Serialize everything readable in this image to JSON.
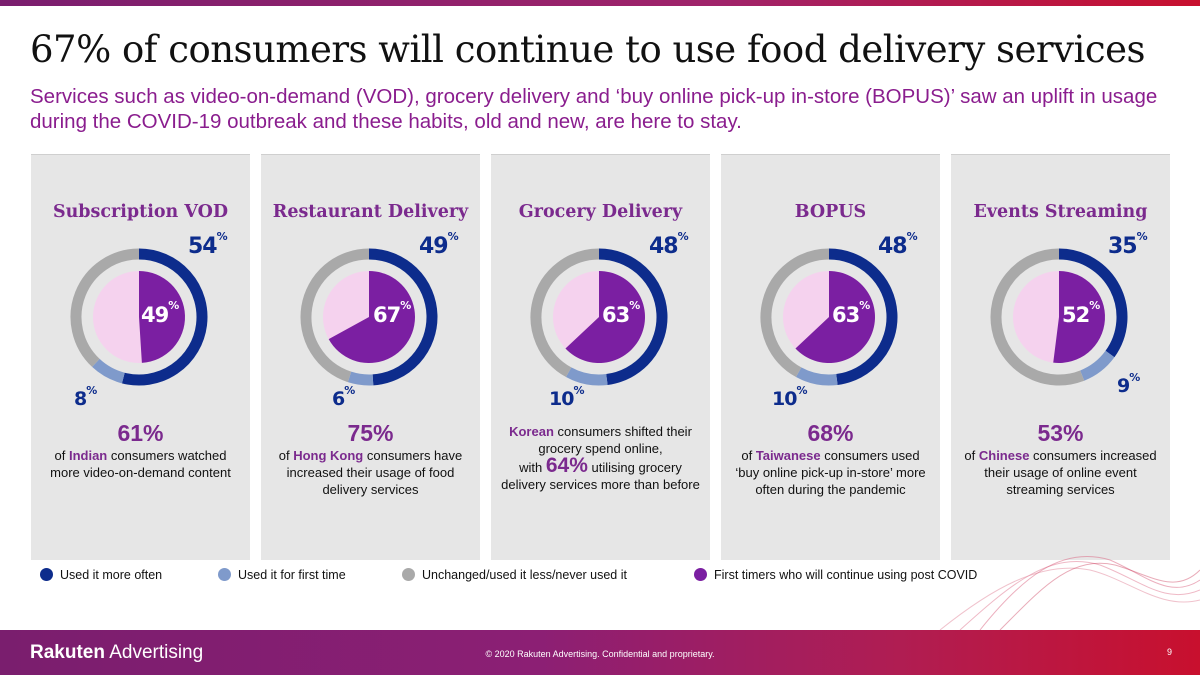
{
  "title": "67% of consumers will continue to use food delivery services",
  "subtitle": "Services such as video-on-demand (VOD), grocery delivery and ‘buy online pick-up in-store (BOPUS)’ saw an uplift in usage during the COVID-19 outbreak and these habits, old and new, are here to stay.",
  "colors": {
    "used_more": "#0d2c8c",
    "first_time": "#7f9acb",
    "unchanged": "#a9a9a9",
    "continue": "#7b1fa2",
    "inner_rest": "#f5d2ee",
    "panel_bg": "#e6e6e6"
  },
  "chart_data": {
    "type": "pie",
    "categories": [
      "Subscription VOD",
      "Restaurant Delivery",
      "Grocery Delivery",
      "BOPUS",
      "Events Streaming"
    ],
    "series": [
      {
        "name": "Used it more often",
        "values": [
          54,
          49,
          48,
          48,
          35
        ]
      },
      {
        "name": "Used it for first time",
        "values": [
          8,
          6,
          10,
          10,
          9
        ]
      },
      {
        "name": "Unchanged/used it less/never used it",
        "values": [
          38,
          45,
          42,
          42,
          56
        ]
      },
      {
        "name": "First timers who will continue using post COVID",
        "values": [
          49,
          67,
          63,
          63,
          52
        ]
      }
    ],
    "legend": "bottom"
  },
  "pct_sign": "%",
  "panels": [
    {
      "title": "Subscription VOD",
      "more": "54",
      "first": "8",
      "cont": "49",
      "stat": "61%",
      "pre": "of ",
      "hl": "Indian",
      "post": " consumers watched more video-on-demand content"
    },
    {
      "title": "Restaurant Delivery",
      "more": "49",
      "first": "6",
      "cont": "67",
      "stat": "75%",
      "pre": "of ",
      "hl": "Hong Kong",
      "post": " consumers have increased their usage of food delivery services"
    },
    {
      "title": "Grocery Delivery",
      "more": "48",
      "first": "10",
      "cont": "63",
      "hl": "Korean",
      "line_a": " consumers shifted their grocery spend online,",
      "with": "with ",
      "big": "64%",
      "line_b": " utilising grocery delivery services more than before"
    },
    {
      "title": "BOPUS",
      "more": "48",
      "first": "10",
      "cont": "63",
      "stat": "68%",
      "pre": "of ",
      "hl": "Taiwanese",
      "post": " consumers used ‘buy online pick-up in-store’ more often during the pandemic"
    },
    {
      "title": "Events Streaming",
      "more": "35",
      "first": "9",
      "cont": "52",
      "stat": "53%",
      "pre": "of ",
      "hl": "Chinese",
      "post": " consumers increased their usage of online event streaming services"
    }
  ],
  "legend": [
    {
      "label": "Used it more often"
    },
    {
      "label": "Used it for first time"
    },
    {
      "label": "Unchanged/used it less/never used it"
    },
    {
      "label": "First timers who will continue using post COVID"
    }
  ],
  "footer": {
    "logo_bold": "Rakuten",
    "logo_rest": " Advertising",
    "copyright": "© 2020 Rakuten Advertising. Confidential and proprietary.",
    "page": "9"
  }
}
